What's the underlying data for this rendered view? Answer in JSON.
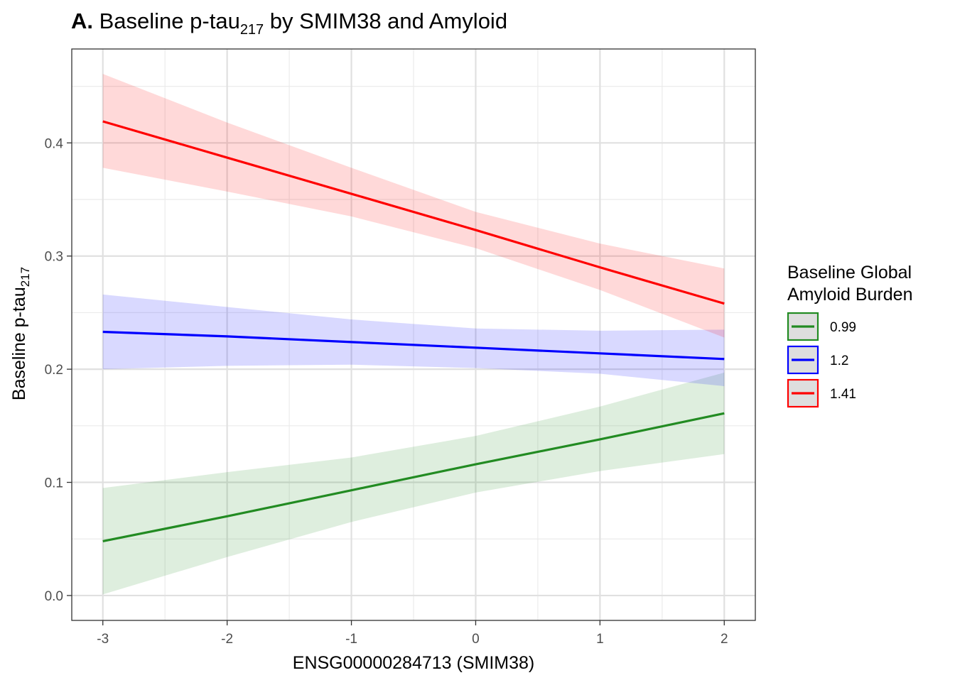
{
  "chart_data": {
    "type": "line",
    "title_prefix": "A.",
    "title_main": "Baseline p-tau",
    "title_sub": "217",
    "title_rest": " by SMIM38 and Amyloid",
    "xlabel": "ENSG00000284713 (SMIM38)",
    "ylabel_main": "Baseline p-tau",
    "ylabel_sub": "217",
    "xlim": [
      -3.25,
      2.25
    ],
    "ylim": [
      -0.022,
      0.483
    ],
    "x_ticks": [
      -3,
      -2,
      -1,
      0,
      1,
      2
    ],
    "x_tick_labels": [
      "-3",
      "-2",
      "-1",
      "0",
      "1",
      "2"
    ],
    "y_ticks": [
      0.0,
      0.1,
      0.2,
      0.3,
      0.4
    ],
    "y_tick_labels": [
      "0.0",
      "0.1",
      "0.2",
      "0.3",
      "0.4"
    ],
    "x_minor": [
      -2.5,
      -1.5,
      -0.5,
      0.5,
      1.5
    ],
    "y_minor": [
      0.05,
      0.15,
      0.25,
      0.35,
      0.45
    ],
    "grid": true,
    "legend": {
      "title_line1": "Baseline Global",
      "title_line2": "Amyloid Burden",
      "position": "right"
    },
    "x": [
      -3,
      -2,
      -1,
      0,
      1,
      2
    ],
    "series": [
      {
        "name": "0.99",
        "color": "#228B22",
        "values": [
          0.048,
          0.07,
          0.093,
          0.116,
          0.138,
          0.161
        ],
        "lower": [
          0.001,
          0.034,
          0.065,
          0.091,
          0.11,
          0.125
        ],
        "upper": [
          0.095,
          0.109,
          0.122,
          0.141,
          0.167,
          0.197
        ]
      },
      {
        "name": "1.2",
        "color": "#0000FF",
        "values": [
          0.233,
          0.229,
          0.224,
          0.219,
          0.214,
          0.209
        ],
        "lower": [
          0.2,
          0.203,
          0.204,
          0.201,
          0.196,
          0.185
        ],
        "upper": [
          0.266,
          0.255,
          0.244,
          0.236,
          0.234,
          0.235
        ]
      },
      {
        "name": "1.41",
        "color": "#FF0000",
        "values": [
          0.419,
          0.387,
          0.355,
          0.323,
          0.29,
          0.258
        ],
        "lower": [
          0.378,
          0.357,
          0.335,
          0.307,
          0.27,
          0.228
        ],
        "upper": [
          0.461,
          0.418,
          0.378,
          0.339,
          0.311,
          0.289
        ]
      }
    ]
  }
}
